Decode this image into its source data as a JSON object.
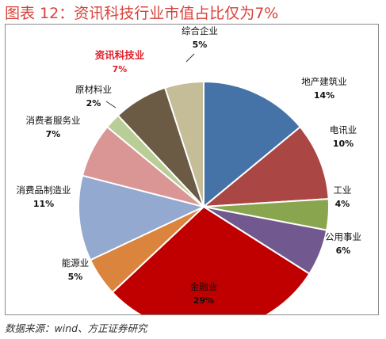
{
  "title": "图表 12：资讯科技行业市值占比仅为7%",
  "source": "数据来源：wind、方正证券研究",
  "chart_data": {
    "type": "pie",
    "start_angle_deg": 0,
    "direction": "clockwise",
    "slices": [
      {
        "label": "地产建筑业",
        "value": 14,
        "pct_text": "14%",
        "color": "#4572a7"
      },
      {
        "label": "电讯业",
        "value": 10,
        "pct_text": "10%",
        "color": "#aa4643"
      },
      {
        "label": "工业",
        "value": 4,
        "pct_text": "4%",
        "color": "#89a54e"
      },
      {
        "label": "公用事业",
        "value": 6,
        "pct_text": "6%",
        "color": "#71588f"
      },
      {
        "label": "金融业",
        "value": 29,
        "pct_text": "29%",
        "color": "#c00000"
      },
      {
        "label": "能源业",
        "value": 5,
        "pct_text": "5%",
        "color": "#db843d"
      },
      {
        "label": "消费品制造业",
        "value": 11,
        "pct_text": "11%",
        "color": "#93a9cf"
      },
      {
        "label": "消费者服务业",
        "value": 7,
        "pct_text": "7%",
        "color": "#d99694"
      },
      {
        "label": "原材料业",
        "value": 2,
        "pct_text": "2%",
        "color": "#b9cd96"
      },
      {
        "label": "资讯科技业",
        "value": 7,
        "pct_text": "7%",
        "color": "#6b5b45",
        "highlight": true
      },
      {
        "label": "综合企业",
        "value": 5,
        "pct_text": "5%",
        "color": "#c4bd97"
      }
    ]
  }
}
